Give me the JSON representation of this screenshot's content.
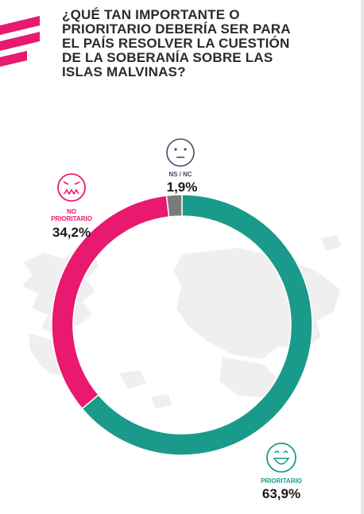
{
  "title": "¿QUÉ TAN IMPORTANTE O\nPRIORITARIO DEBERÍA SER PARA\nEL PAÍS RESOLVER LA CUESTIÓN\nDE LA SOBERANÍA SOBRE LAS\nISLAS MALVINAS?",
  "colors": {
    "prioritario": "#1a9a8a",
    "no_prioritario": "#e8196f",
    "ns_nc": "#7b7b7b",
    "title": "#2b2b2b",
    "brand": "#e8196f",
    "map": "#efefef"
  },
  "icons": {
    "brand": "stripes-logo-icon",
    "prioritario": "happy-face-icon",
    "no_prioritario": "angry-face-icon",
    "ns_nc": "neutral-face-icon"
  },
  "chart_data": {
    "type": "pie",
    "style": "donut",
    "title": "¿QUÉ TAN IMPORTANTE O PRIORITARIO DEBERÍA SER PARA EL PAÍS RESOLVER LA CUESTIÓN DE LA SOBERANÍA SOBRE LAS ISLAS MALVINAS?",
    "categories": [
      "PRIORITARIO",
      "NO\nPRIORITARIO",
      "NS / NC"
    ],
    "values": [
      63.9,
      34.2,
      1.9
    ],
    "value_labels": [
      "63,9%",
      "34,2%",
      "1,9%"
    ],
    "unit": "%"
  }
}
